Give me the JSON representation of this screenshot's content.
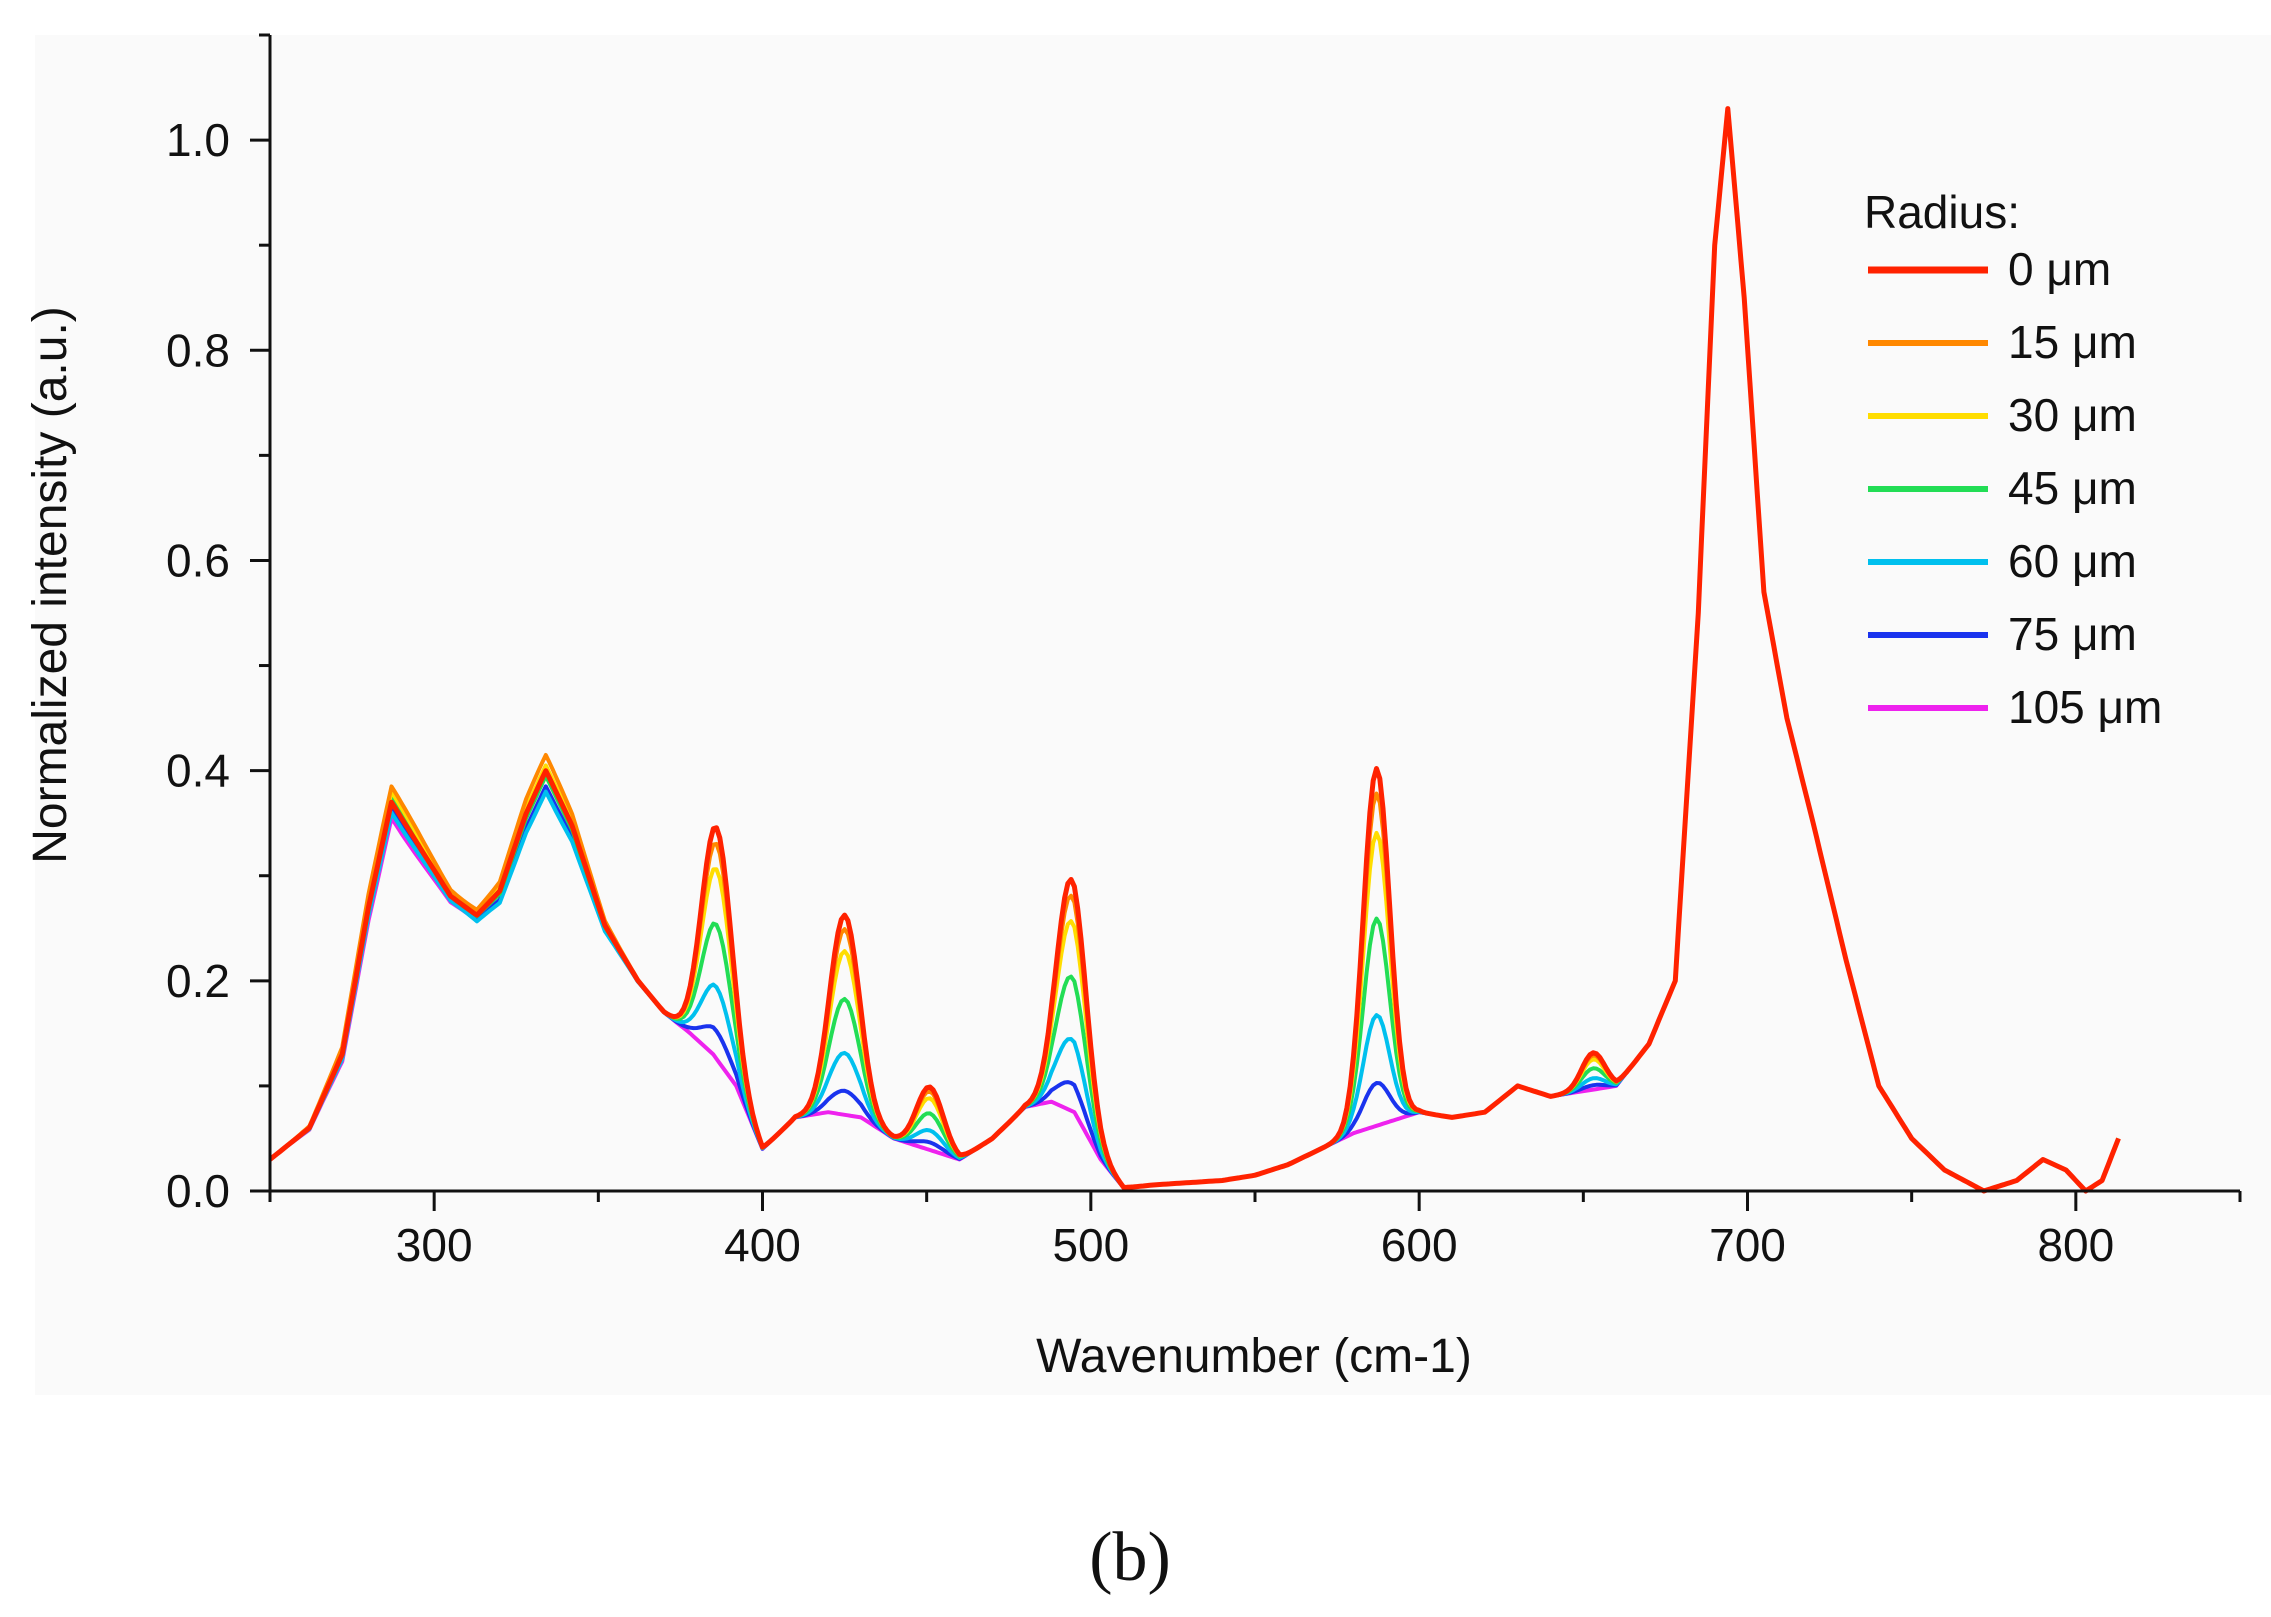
{
  "chart_data": {
    "type": "line",
    "title": "",
    "xlabel": "Wavenumber (cm-1)",
    "ylabel": "Normalized intensity (a.u.)",
    "xlim": [
      250,
      850
    ],
    "ylim": [
      0.0,
      1.1
    ],
    "xticks": [
      300,
      400,
      500,
      600,
      700,
      800
    ],
    "xtick_labels": [
      "300",
      "400",
      "500",
      "600",
      "700",
      "800"
    ],
    "yticks": [
      0.0,
      0.2,
      0.4,
      0.6,
      0.8,
      1.0
    ],
    "ytick_labels": [
      "0.0",
      "0.2",
      "0.4",
      "0.6",
      "0.8",
      "1.0"
    ],
    "legend_title": "Radius:",
    "legend_position": "top-right",
    "caption": "(b)",
    "series": [
      {
        "name": "0 μm",
        "color": "#ff2200",
        "scale": 1.0
      },
      {
        "name": "15 μm",
        "color": "#ff8800",
        "scale": 0.93
      },
      {
        "name": "30 μm",
        "color": "#ffdd00",
        "scale": 0.82
      },
      {
        "name": "45 μm",
        "color": "#22dd55",
        "scale": 0.58
      },
      {
        "name": "60 μm",
        "color": "#00c0ee",
        "scale": 0.31
      },
      {
        "name": "75 μm",
        "color": "#1a33ee",
        "scale": 0.12
      },
      {
        "name": "105 μm",
        "color": "#ee22ee",
        "scale": 0.0
      }
    ],
    "base_points": [
      [
        250,
        0.03
      ],
      [
        262,
        0.06
      ],
      [
        272,
        0.13
      ],
      [
        280,
        0.27
      ],
      [
        287,
        0.37
      ],
      [
        295,
        0.33
      ],
      [
        305,
        0.28
      ],
      [
        313,
        0.26
      ],
      [
        320,
        0.28
      ],
      [
        328,
        0.35
      ],
      [
        334,
        0.39
      ],
      [
        342,
        0.34
      ],
      [
        352,
        0.25
      ],
      [
        362,
        0.2
      ],
      [
        370,
        0.17
      ],
      [
        378,
        0.15
      ],
      [
        385,
        0.13
      ],
      [
        392,
        0.1
      ],
      [
        400,
        0.04
      ],
      [
        410,
        0.07
      ],
      [
        420,
        0.075
      ],
      [
        430,
        0.07
      ],
      [
        440,
        0.05
      ],
      [
        450,
        0.04
      ],
      [
        460,
        0.03
      ],
      [
        470,
        0.05
      ],
      [
        480,
        0.08
      ],
      [
        488,
        0.085
      ],
      [
        495,
        0.075
      ],
      [
        503,
        0.03
      ],
      [
        510,
        0.003
      ],
      [
        520,
        0.006
      ],
      [
        530,
        0.008
      ],
      [
        540,
        0.01
      ],
      [
        550,
        0.015
      ],
      [
        560,
        0.025
      ],
      [
        570,
        0.04
      ],
      [
        580,
        0.055
      ],
      [
        590,
        0.065
      ],
      [
        600,
        0.075
      ],
      [
        610,
        0.07
      ],
      [
        620,
        0.075
      ],
      [
        630,
        0.1
      ],
      [
        640,
        0.09
      ],
      [
        650,
        0.095
      ],
      [
        660,
        0.1
      ],
      [
        670,
        0.14
      ],
      [
        678,
        0.2
      ],
      [
        685,
        0.55
      ],
      [
        690,
        0.9
      ],
      [
        694,
        1.03
      ],
      [
        699,
        0.85
      ],
      [
        705,
        0.57
      ],
      [
        712,
        0.45
      ],
      [
        720,
        0.35
      ],
      [
        730,
        0.22
      ],
      [
        740,
        0.1
      ],
      [
        750,
        0.05
      ],
      [
        760,
        0.02
      ],
      [
        772,
        0.0
      ],
      [
        782,
        0.01
      ],
      [
        790,
        0.03
      ],
      [
        797,
        0.02
      ],
      [
        803,
        0.0
      ],
      [
        808,
        0.01
      ],
      [
        813,
        0.05
      ]
    ],
    "peaks": [
      {
        "center": 386,
        "width": 4.5,
        "height": 0.22
      },
      {
        "center": 425,
        "width": 4.5,
        "height": 0.19
      },
      {
        "center": 451,
        "width": 4.0,
        "height": 0.06
      },
      {
        "center": 494,
        "width": 4.5,
        "height": 0.22
      },
      {
        "center": 587,
        "width": 4.0,
        "height": 0.34
      },
      {
        "center": 653,
        "width": 3.5,
        "height": 0.035
      }
    ],
    "series_offsets": [
      [
        {
          "x": 333,
          "dy": 0.01
        },
        {
          "x": 287,
          "dy": 0.0
        }
      ],
      [
        {
          "x": 333,
          "dy": 0.025
        },
        {
          "x": 287,
          "dy": 0.015
        }
      ],
      [
        {
          "x": 333,
          "dy": 0.015
        },
        {
          "x": 287,
          "dy": 0.01
        }
      ],
      [
        {
          "x": 333,
          "dy": 0.005
        },
        {
          "x": 287,
          "dy": 0.005
        }
      ],
      [
        {
          "x": 333,
          "dy": -0.01
        },
        {
          "x": 287,
          "dy": -0.01
        }
      ],
      [
        {
          "x": 333,
          "dy": -0.005
        },
        {
          "x": 287,
          "dy": -0.005
        }
      ],
      [
        {
          "x": 333,
          "dy": -0.005
        },
        {
          "x": 287,
          "dy": -0.015
        }
      ]
    ]
  }
}
